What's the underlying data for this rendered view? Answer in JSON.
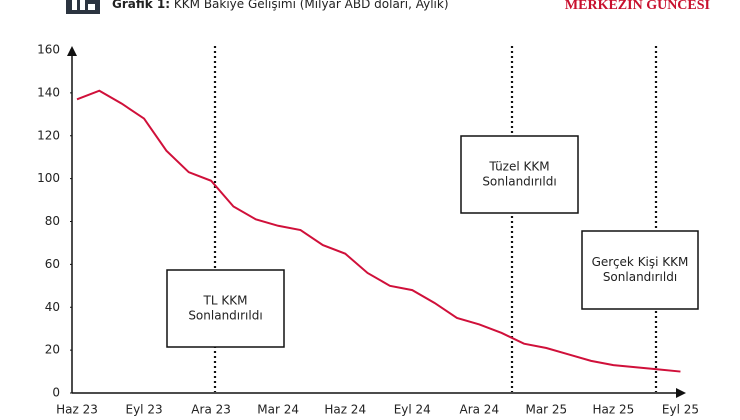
{
  "chart_data": {
    "type": "line",
    "title_label": "Grafik 1:",
    "title": "KKM Bakiye Gelişimi (Milyar ABD doları, Aylık)",
    "brand": "MERKEZİN GÜNCESİ",
    "categories": [
      "Haz 23",
      null,
      null,
      "Eyl 23",
      null,
      null,
      "Ara 23",
      null,
      null,
      "Mar 24",
      null,
      null,
      "Haz 24",
      null,
      null,
      "Eyl 24",
      null,
      null,
      "Ara 24",
      null,
      null,
      "Mar 25",
      null,
      null,
      "Haz 25",
      null,
      null,
      "Eyl 25"
    ],
    "series": [
      {
        "name": "KKM",
        "color": "#d0103a",
        "values": [
          137,
          141,
          135,
          128,
          113,
          103,
          99,
          87,
          81,
          78,
          76,
          69,
          65,
          56,
          50,
          48,
          42,
          35,
          32,
          28,
          23,
          21,
          18,
          15,
          13,
          12,
          11,
          10
        ]
      }
    ],
    "ylim": [
      0,
      160
    ],
    "yticks": [
      0,
      20,
      40,
      60,
      80,
      100,
      120,
      140,
      160
    ],
    "annotations": [
      {
        "lines": [
          "TL KKM",
          "Sonlandırıldı"
        ]
      },
      {
        "lines": [
          "Tüzel KKM",
          "Sonlandırıldı"
        ]
      },
      {
        "lines": [
          "Gerçek Kişi KKM",
          "Sonlandırıldı"
        ]
      }
    ]
  }
}
